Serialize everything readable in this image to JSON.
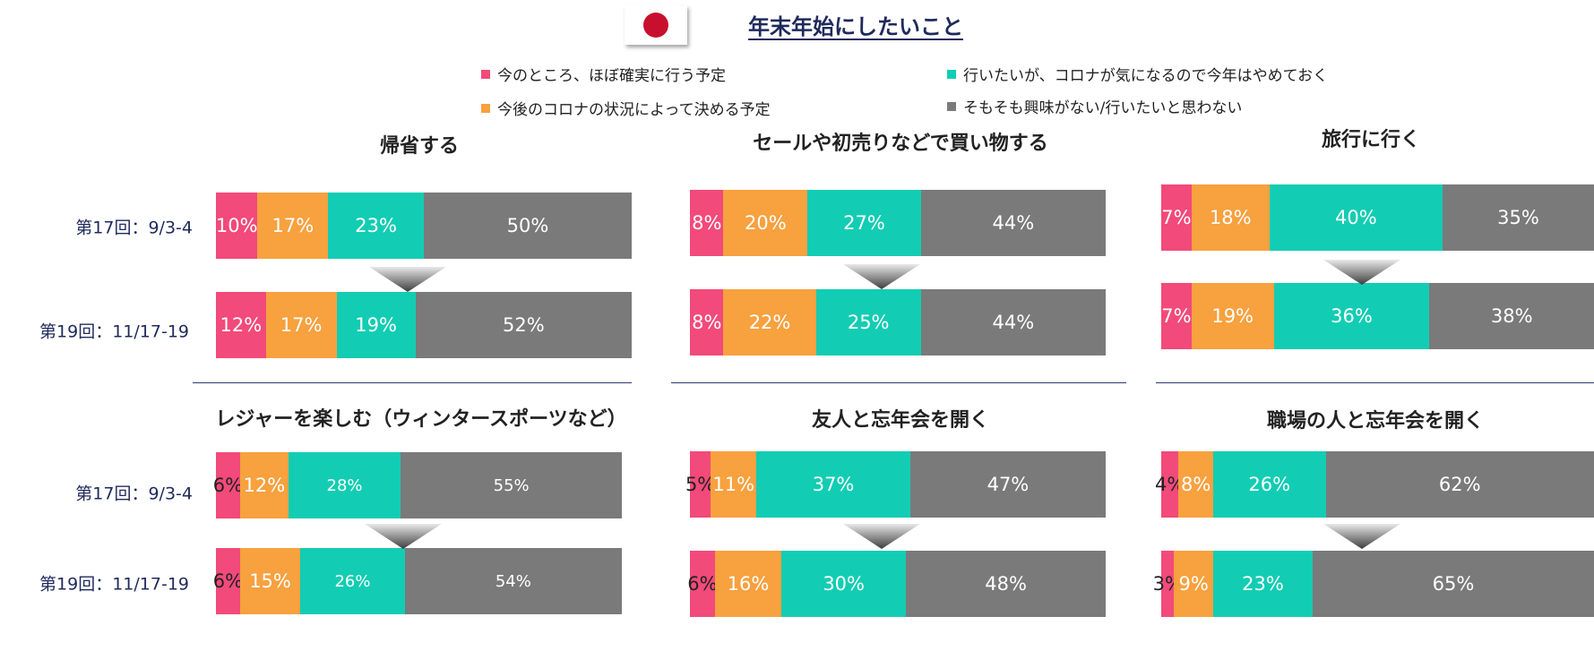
{
  "header": {
    "title": "年末年始にしたいこと"
  },
  "legend": [
    {
      "label": "今のところ、ほぼ確実に行う予定",
      "color": "#f24a7a"
    },
    {
      "label": "今後のコロナの状況によって決める予定",
      "color": "#f7a13f"
    },
    {
      "label": "行いたいが、コロナが気になるので今年はやめておく",
      "color": "#12cdb3"
    },
    {
      "label": "そもそも興味がない/行いたいと思わない",
      "color": "#7a7a7a"
    }
  ],
  "chart_data": [
    {
      "type": "bar",
      "title": "帰省する",
      "categories": [
        "第17回：9/3-4",
        "第19回：11/17-19"
      ],
      "series": [
        {
          "name": "今のところ、ほぼ確実に行う予定",
          "values": [
            10,
            12
          ]
        },
        {
          "name": "今後のコロナの状況によって決める予定",
          "values": [
            17,
            17
          ]
        },
        {
          "name": "行いたいが、コロナが気になるので今年はやめておく",
          "values": [
            23,
            19
          ]
        },
        {
          "name": "そもそも興味がない/行いたいと思わない",
          "values": [
            50,
            52
          ]
        }
      ]
    },
    {
      "type": "bar",
      "title": "セールや初売りなどで買い物する",
      "categories": [
        "第17回：9/3-4",
        "第19回：11/17-19"
      ],
      "series": [
        {
          "name": "今のところ、ほぼ確実に行う予定",
          "values": [
            8,
            8
          ]
        },
        {
          "name": "今後のコロナの状況によって決める予定",
          "values": [
            20,
            22
          ]
        },
        {
          "name": "行いたいが、コロナが気になるので今年はやめておく",
          "values": [
            27,
            25
          ]
        },
        {
          "name": "そもそも興味がない/行いたいと思わない",
          "values": [
            44,
            44
          ]
        }
      ]
    },
    {
      "type": "bar",
      "title": "旅行に行く",
      "categories": [
        "第17回：9/3-4",
        "第19回：11/17-19"
      ],
      "series": [
        {
          "name": "今のところ、ほぼ確実に行う予定",
          "values": [
            7,
            7
          ]
        },
        {
          "name": "今後のコロナの状況によって決める予定",
          "values": [
            18,
            19
          ]
        },
        {
          "name": "行いたいが、コロナが気になるので今年はやめておく",
          "values": [
            40,
            36
          ]
        },
        {
          "name": "そもそも興味がない/行いたいと思わない",
          "values": [
            35,
            38
          ]
        }
      ]
    },
    {
      "type": "bar",
      "title": "レジャーを楽しむ（ウィンタースポーツなど）",
      "categories": [
        "第17回：9/3-4",
        "第19回：11/17-19"
      ],
      "series": [
        {
          "name": "今のところ、ほぼ確実に行う予定",
          "values": [
            6,
            6
          ]
        },
        {
          "name": "今後のコロナの状況によって決める予定",
          "values": [
            12,
            15
          ]
        },
        {
          "name": "行いたいが、コロナが気になるので今年はやめておく",
          "values": [
            28,
            26
          ]
        },
        {
          "name": "そもそも興味がない/行いたいと思わない",
          "values": [
            55,
            54
          ]
        }
      ]
    },
    {
      "type": "bar",
      "title": "友人と忘年会を開く",
      "categories": [
        "第17回：9/3-4",
        "第19回：11/17-19"
      ],
      "series": [
        {
          "name": "今のところ、ほぼ確実に行う予定",
          "values": [
            5,
            6
          ]
        },
        {
          "name": "今後のコロナの状況によって決める予定",
          "values": [
            11,
            16
          ]
        },
        {
          "name": "行いたいが、コロナが気になるので今年はやめておく",
          "values": [
            37,
            30
          ]
        },
        {
          "name": "そもそも興味がない/行いたいと思わない",
          "values": [
            47,
            48
          ]
        }
      ]
    },
    {
      "type": "bar",
      "title": "職場の人と忘年会を開く",
      "categories": [
        "第17回：9/3-4",
        "第19回：11/17-19"
      ],
      "series": [
        {
          "name": "今のところ、ほぼ確実に行う予定",
          "values": [
            4,
            3
          ]
        },
        {
          "name": "今後のコロナの状況によって決める予定",
          "values": [
            8,
            9
          ]
        },
        {
          "name": "行いたいが、コロナが気になるので今年はやめておく",
          "values": [
            26,
            23
          ]
        },
        {
          "name": "そもそも興味がない/行いたいと思わない",
          "values": [
            62,
            65
          ]
        }
      ]
    }
  ]
}
